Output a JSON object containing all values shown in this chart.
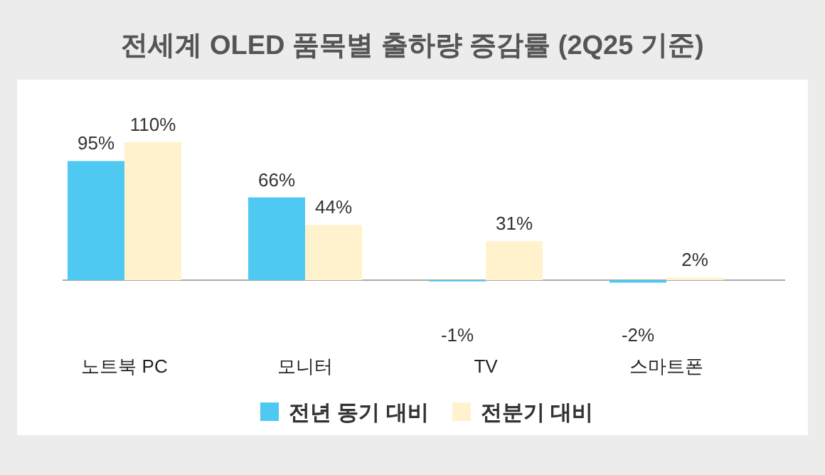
{
  "chart_data": {
    "type": "bar",
    "title": "전세계 OLED 품목별 출하량 증감률 (2Q25 기준)",
    "categories": [
      "노트북 PC",
      "모니터",
      "TV",
      "스마트폰"
    ],
    "series": [
      {
        "name": "전년 동기 대비",
        "color": "#4fc9f2",
        "values": [
          95,
          66,
          -1,
          -2
        ],
        "value_labels": [
          "95%",
          "66%",
          "-1%",
          "-2%"
        ]
      },
      {
        "name": "전분기 대비",
        "color": "#fff2cc",
        "values": [
          110,
          44,
          31,
          2
        ],
        "value_labels": [
          "110%",
          "44%",
          "31%",
          "2%"
        ]
      }
    ],
    "legend": "bottom"
  }
}
